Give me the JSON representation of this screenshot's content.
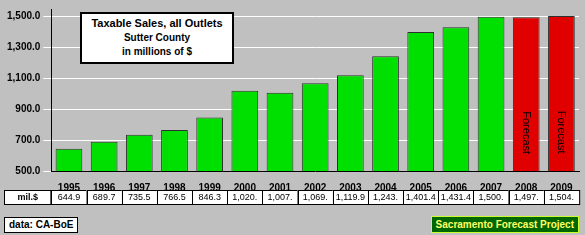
{
  "chart_data": {
    "type": "bar",
    "title": "Taxable Sales, all Outlets",
    "subtitle": [
      "Sutter County",
      "in millions of $"
    ],
    "categories": [
      "1995",
      "1996",
      "1997",
      "1998",
      "1999",
      "2000",
      "2001",
      "2002",
      "2003",
      "2004",
      "2005",
      "2006",
      "2007",
      "2008",
      "2009"
    ],
    "values": [
      644.9,
      689.7,
      735.5,
      766.5,
      846.3,
      1020,
      1007,
      1069,
      1119.9,
      1243,
      1401.4,
      1431.4,
      1500,
      1497,
      1504
    ],
    "value_labels": [
      "644.9",
      "689.7",
      "735.5",
      "766.5",
      "846.3",
      "1,020.",
      "1,007.",
      "1,069.",
      "1,119.9",
      "1,243.",
      "1,401.4",
      "1,431.4",
      "1,500.",
      "1,497.",
      "1,504."
    ],
    "data_labels": true,
    "table_label": "mil.$",
    "colors": [
      "#00e000",
      "#00e000",
      "#00e000",
      "#00e000",
      "#00e000",
      "#00e000",
      "#00e000",
      "#00e000",
      "#00e000",
      "#00e000",
      "#00e000",
      "#00e000",
      "#00e000",
      "#e00000",
      "#e00000"
    ],
    "ylim": [
      500,
      1550
    ],
    "yticks": [
      {
        "value": 500,
        "label": "500.0"
      },
      {
        "value": 700,
        "label": "700.0"
      },
      {
        "value": 900,
        "label": "900.0"
      },
      {
        "value": 1100,
        "label": "1,100.0"
      },
      {
        "value": 1300,
        "label": "1,300.0"
      },
      {
        "value": 1500,
        "label": "1,500.0"
      }
    ],
    "grid": true,
    "annotations": [
      {
        "category": "2008",
        "text": "Forecast"
      },
      {
        "category": "2009",
        "text": "Forecast"
      }
    ],
    "source": "data: CA-BoE",
    "credit": "Sacramento Forecast Project"
  }
}
